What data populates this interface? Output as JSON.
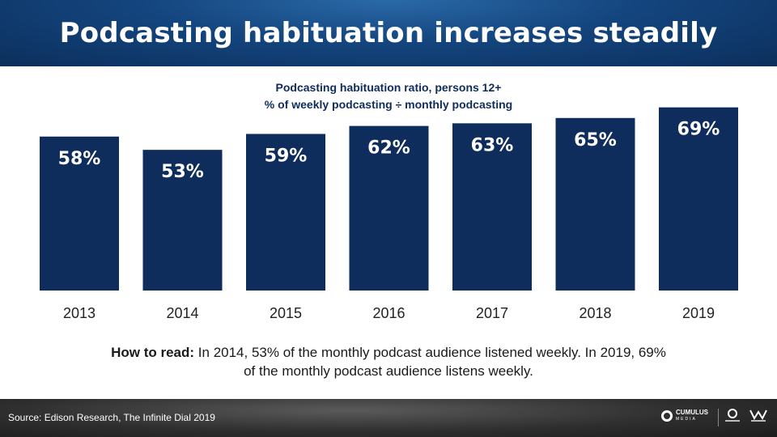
{
  "header": {
    "title": "Podcasting habituation increases steadily"
  },
  "chart_data": {
    "type": "bar",
    "title": "Podcasting habituation ratio, persons 12+",
    "subtitle": "% of weekly podcasting ÷ monthly podcasting",
    "categories": [
      "2013",
      "2014",
      "2015",
      "2016",
      "2017",
      "2018",
      "2019"
    ],
    "values": [
      58,
      53,
      59,
      62,
      63,
      65,
      69
    ],
    "labels": [
      "58%",
      "53%",
      "59%",
      "62%",
      "63%",
      "65%",
      "69%"
    ],
    "ylim": [
      0,
      100
    ],
    "grid": false,
    "bar_color": "#0f2d5c",
    "label_color": "#ffffff"
  },
  "how_to_read": {
    "lead": "How to read:",
    "line1": "In 2014, 53% of the monthly podcast audience listened weekly. In 2019, 69%",
    "line2": "of the monthly podcast audience listens weekly."
  },
  "footer": {
    "source": "Source: Edison Research, The Infinite Dial 2019",
    "logo_name": "CUMULUS",
    "logo_sub": "MEDIA",
    "logos": [
      "cumulus-media-logo",
      "cumulus-radio-logo",
      "westwood-one-logo"
    ]
  }
}
